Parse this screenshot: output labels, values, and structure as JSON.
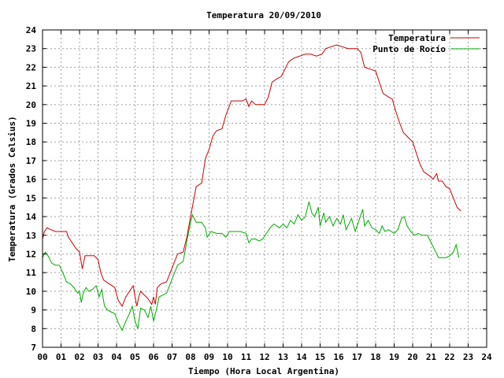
{
  "chart_data": {
    "type": "line",
    "title": "Temperatura 20/09/2010",
    "xlabel": "Tiempo (Hora Local Argentina)",
    "ylabel": "Temperatura (Grados Celsius)",
    "xlim": [
      0,
      24
    ],
    "ylim": [
      7,
      24
    ],
    "x_tick_labels": [
      "00",
      "01",
      "02",
      "03",
      "04",
      "05",
      "06",
      "07",
      "08",
      "09",
      "10",
      "11",
      "12",
      "13",
      "14",
      "15",
      "16",
      "17",
      "18",
      "19",
      "20",
      "21",
      "22",
      "23",
      "24"
    ],
    "y_tick_labels": [
      "7",
      "8",
      "9",
      "10",
      "11",
      "12",
      "13",
      "14",
      "15",
      "16",
      "17",
      "18",
      "19",
      "20",
      "21",
      "22",
      "23",
      "24"
    ],
    "grid": true,
    "legend_position": "top-right",
    "colors": {
      "temperatura": "#cc0000",
      "punto_rocio": "#00aa00"
    },
    "series": [
      {
        "name": "Temperatura",
        "color": "#cc0000",
        "points": [
          [
            0.0,
            12.8
          ],
          [
            0.1,
            13.2
          ],
          [
            0.25,
            13.4
          ],
          [
            0.45,
            13.3
          ],
          [
            0.7,
            13.2
          ],
          [
            1.0,
            13.2
          ],
          [
            1.3,
            13.2
          ],
          [
            1.4,
            12.9
          ],
          [
            1.6,
            12.6
          ],
          [
            1.8,
            12.3
          ],
          [
            2.0,
            12.1
          ],
          [
            2.15,
            11.2
          ],
          [
            2.3,
            11.9
          ],
          [
            2.5,
            11.9
          ],
          [
            2.8,
            11.9
          ],
          [
            3.0,
            11.7
          ],
          [
            3.15,
            11.0
          ],
          [
            3.3,
            10.6
          ],
          [
            3.6,
            10.4
          ],
          [
            3.9,
            10.2
          ],
          [
            4.1,
            9.5
          ],
          [
            4.3,
            9.2
          ],
          [
            4.5,
            9.7
          ],
          [
            4.7,
            10.0
          ],
          [
            4.9,
            10.3
          ],
          [
            5.0,
            9.7
          ],
          [
            5.1,
            9.2
          ],
          [
            5.2,
            9.7
          ],
          [
            5.3,
            10.0
          ],
          [
            5.5,
            9.8
          ],
          [
            5.7,
            9.6
          ],
          [
            5.9,
            9.3
          ],
          [
            6.0,
            9.7
          ],
          [
            6.1,
            9.3
          ],
          [
            6.2,
            10.2
          ],
          [
            6.4,
            10.4
          ],
          [
            6.7,
            10.5
          ],
          [
            6.9,
            11.0
          ],
          [
            7.1,
            11.5
          ],
          [
            7.3,
            12.0
          ],
          [
            7.6,
            12.1
          ],
          [
            7.8,
            12.9
          ],
          [
            8.0,
            14.0
          ],
          [
            8.3,
            15.6
          ],
          [
            8.6,
            15.8
          ],
          [
            8.8,
            17.1
          ],
          [
            9.0,
            17.6
          ],
          [
            9.2,
            18.3
          ],
          [
            9.4,
            18.6
          ],
          [
            9.7,
            18.7
          ],
          [
            9.9,
            19.4
          ],
          [
            10.2,
            20.2
          ],
          [
            10.5,
            20.2
          ],
          [
            10.8,
            20.2
          ],
          [
            11.0,
            20.3
          ],
          [
            11.15,
            19.9
          ],
          [
            11.3,
            20.2
          ],
          [
            11.5,
            20.0
          ],
          [
            11.8,
            20.0
          ],
          [
            12.0,
            20.0
          ],
          [
            12.2,
            20.4
          ],
          [
            12.4,
            21.2
          ],
          [
            12.7,
            21.4
          ],
          [
            12.9,
            21.5
          ],
          [
            13.1,
            21.9
          ],
          [
            13.3,
            22.3
          ],
          [
            13.6,
            22.5
          ],
          [
            13.9,
            22.6
          ],
          [
            14.2,
            22.7
          ],
          [
            14.5,
            22.7
          ],
          [
            14.8,
            22.6
          ],
          [
            15.1,
            22.7
          ],
          [
            15.3,
            23.0
          ],
          [
            15.6,
            23.1
          ],
          [
            15.9,
            23.2
          ],
          [
            16.2,
            23.1
          ],
          [
            16.5,
            23.0
          ],
          [
            16.8,
            23.0
          ],
          [
            17.0,
            23.0
          ],
          [
            17.2,
            22.8
          ],
          [
            17.4,
            22.0
          ],
          [
            17.7,
            21.9
          ],
          [
            18.0,
            21.8
          ],
          [
            18.2,
            21.2
          ],
          [
            18.4,
            20.6
          ],
          [
            18.7,
            20.4
          ],
          [
            18.9,
            20.3
          ],
          [
            19.1,
            19.6
          ],
          [
            19.3,
            19.0
          ],
          [
            19.5,
            18.5
          ],
          [
            19.8,
            18.2
          ],
          [
            20.0,
            18.0
          ],
          [
            20.2,
            17.4
          ],
          [
            20.4,
            16.8
          ],
          [
            20.6,
            16.4
          ],
          [
            20.9,
            16.2
          ],
          [
            21.1,
            16.0
          ],
          [
            21.3,
            16.3
          ],
          [
            21.4,
            15.9
          ],
          [
            21.6,
            15.9
          ],
          [
            21.8,
            15.6
          ],
          [
            22.0,
            15.5
          ],
          [
            22.2,
            15.0
          ],
          [
            22.4,
            14.5
          ],
          [
            22.6,
            14.3
          ]
        ]
      },
      {
        "name": "Punto de Rocío",
        "color": "#00aa00",
        "points": [
          [
            0.0,
            11.8
          ],
          [
            0.15,
            12.1
          ],
          [
            0.3,
            11.9
          ],
          [
            0.5,
            11.5
          ],
          [
            0.7,
            11.4
          ],
          [
            0.9,
            11.4
          ],
          [
            1.1,
            11.0
          ],
          [
            1.3,
            10.5
          ],
          [
            1.5,
            10.4
          ],
          [
            1.7,
            10.2
          ],
          [
            1.9,
            9.9
          ],
          [
            2.0,
            10.0
          ],
          [
            2.1,
            9.4
          ],
          [
            2.2,
            9.9
          ],
          [
            2.35,
            10.2
          ],
          [
            2.5,
            10.0
          ],
          [
            2.7,
            10.1
          ],
          [
            2.9,
            10.3
          ],
          [
            3.05,
            9.7
          ],
          [
            3.2,
            10.1
          ],
          [
            3.35,
            9.2
          ],
          [
            3.5,
            9.0
          ],
          [
            3.7,
            8.9
          ],
          [
            3.9,
            8.8
          ],
          [
            4.1,
            8.3
          ],
          [
            4.3,
            7.9
          ],
          [
            4.5,
            8.4
          ],
          [
            4.7,
            8.8
          ],
          [
            4.85,
            9.2
          ],
          [
            5.0,
            8.4
          ],
          [
            5.15,
            8.0
          ],
          [
            5.3,
            9.1
          ],
          [
            5.5,
            9.0
          ],
          [
            5.7,
            8.6
          ],
          [
            5.85,
            9.2
          ],
          [
            6.0,
            8.4
          ],
          [
            6.15,
            9.0
          ],
          [
            6.3,
            9.7
          ],
          [
            6.5,
            9.8
          ],
          [
            6.7,
            9.9
          ],
          [
            6.9,
            10.4
          ],
          [
            7.1,
            10.9
          ],
          [
            7.3,
            11.4
          ],
          [
            7.6,
            11.6
          ],
          [
            7.8,
            12.7
          ],
          [
            8.0,
            13.7
          ],
          [
            8.1,
            14.1
          ],
          [
            8.3,
            13.7
          ],
          [
            8.6,
            13.7
          ],
          [
            8.8,
            13.4
          ],
          [
            8.9,
            12.9
          ],
          [
            9.1,
            13.2
          ],
          [
            9.4,
            13.1
          ],
          [
            9.7,
            13.1
          ],
          [
            9.9,
            12.9
          ],
          [
            10.1,
            13.2
          ],
          [
            10.4,
            13.2
          ],
          [
            10.7,
            13.2
          ],
          [
            11.0,
            13.1
          ],
          [
            11.15,
            12.6
          ],
          [
            11.3,
            12.8
          ],
          [
            11.5,
            12.8
          ],
          [
            11.7,
            12.7
          ],
          [
            11.9,
            12.8
          ],
          [
            12.1,
            13.1
          ],
          [
            12.3,
            13.4
          ],
          [
            12.5,
            13.6
          ],
          [
            12.8,
            13.4
          ],
          [
            13.0,
            13.6
          ],
          [
            13.2,
            13.4
          ],
          [
            13.4,
            13.8
          ],
          [
            13.6,
            13.6
          ],
          [
            13.8,
            14.1
          ],
          [
            14.0,
            13.8
          ],
          [
            14.2,
            14.0
          ],
          [
            14.4,
            14.8
          ],
          [
            14.55,
            14.2
          ],
          [
            14.7,
            14.0
          ],
          [
            14.9,
            14.5
          ],
          [
            15.0,
            13.5
          ],
          [
            15.2,
            14.2
          ],
          [
            15.3,
            13.7
          ],
          [
            15.5,
            14.0
          ],
          [
            15.7,
            13.5
          ],
          [
            15.9,
            13.9
          ],
          [
            16.1,
            13.6
          ],
          [
            16.25,
            14.1
          ],
          [
            16.4,
            13.3
          ],
          [
            16.6,
            13.7
          ],
          [
            16.7,
            13.9
          ],
          [
            16.9,
            13.2
          ],
          [
            17.1,
            13.8
          ],
          [
            17.3,
            14.4
          ],
          [
            17.4,
            13.5
          ],
          [
            17.6,
            13.8
          ],
          [
            17.8,
            13.4
          ],
          [
            18.0,
            13.3
          ],
          [
            18.2,
            13.1
          ],
          [
            18.35,
            13.5
          ],
          [
            18.5,
            13.2
          ],
          [
            18.7,
            13.3
          ],
          [
            19.0,
            13.1
          ],
          [
            19.2,
            13.3
          ],
          [
            19.4,
            13.9
          ],
          [
            19.55,
            14.0
          ],
          [
            19.7,
            13.5
          ],
          [
            19.9,
            13.2
          ],
          [
            20.1,
            13.0
          ],
          [
            20.3,
            13.1
          ],
          [
            20.5,
            13.0
          ],
          [
            20.8,
            13.0
          ],
          [
            21.0,
            12.6
          ],
          [
            21.2,
            12.2
          ],
          [
            21.4,
            11.8
          ],
          [
            21.6,
            11.8
          ],
          [
            21.8,
            11.8
          ],
          [
            22.0,
            11.9
          ],
          [
            22.2,
            12.1
          ],
          [
            22.35,
            12.5
          ],
          [
            22.5,
            11.8
          ]
        ]
      }
    ]
  }
}
